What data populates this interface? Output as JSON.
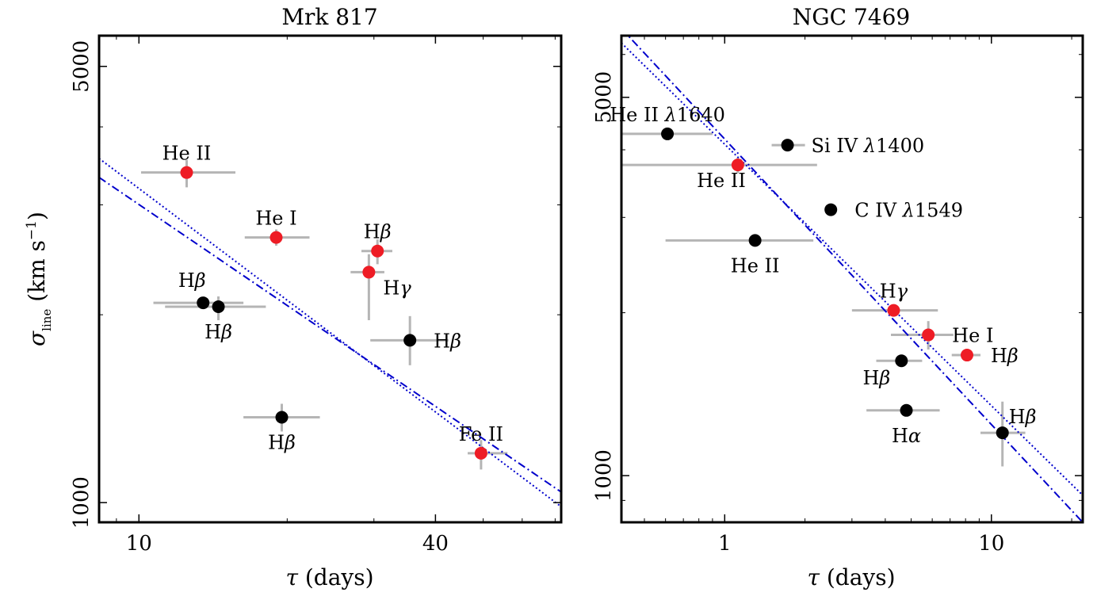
{
  "chart_data": [
    {
      "type": "scatter",
      "title": "Mrk 817",
      "xlabel": "τ (days)",
      "ylabel": "σ_line (km s^-1)",
      "xscale": "log",
      "yscale": "log",
      "xlim": [
        8.3,
        72
      ],
      "ylim": [
        930,
        5600
      ],
      "xticks": [
        10,
        40
      ],
      "yticks": [
        1000,
        5000
      ],
      "ytick_labels": [
        "1000",
        "5000"
      ],
      "grid": false,
      "points": [
        {
          "label": "He II",
          "x": 12.5,
          "y": 3380,
          "xerr": [
            2.4,
            3.2
          ],
          "yerr": [
            180,
            160
          ],
          "color": "red",
          "label_pos": "above"
        },
        {
          "label": "He I",
          "x": 19.0,
          "y": 2660,
          "xerr": [
            2.6,
            3.2
          ],
          "yerr": [
            80,
            80
          ],
          "color": "red",
          "label_pos": "above"
        },
        {
          "label": "Hβ",
          "x": 30.5,
          "y": 2530,
          "xerr": [
            2.2,
            2.2
          ],
          "yerr": [
            120,
            110
          ],
          "color": "red",
          "label_pos": "above"
        },
        {
          "label": "Hγ",
          "x": 29.3,
          "y": 2340,
          "xerr": [
            2.4,
            2.2
          ],
          "yerr": [
            380,
            160
          ],
          "color": "red",
          "label_pos": "below-right"
        },
        {
          "label": "Hβ",
          "x": 13.5,
          "y": 2090,
          "xerr": [
            2.8,
            2.8
          ],
          "yerr": [
            40,
            40
          ],
          "color": "black",
          "label_pos": "above-left"
        },
        {
          "label": "Hβ",
          "x": 14.5,
          "y": 2060,
          "xerr": [
            3.2,
            3.6
          ],
          "yerr": [
            100,
            80
          ],
          "color": "black",
          "label_pos": "below"
        },
        {
          "label": "Hβ",
          "x": 35.5,
          "y": 1820,
          "xerr": [
            6.0,
            7.0
          ],
          "yerr": [
            160,
            170
          ],
          "color": "black",
          "label_pos": "right"
        },
        {
          "label": "Hβ",
          "x": 19.5,
          "y": 1370,
          "xerr": [
            3.2,
            3.8
          ],
          "yerr": [
            70,
            70
          ],
          "color": "black",
          "label_pos": "below"
        },
        {
          "label": "Fe II",
          "x": 49.5,
          "y": 1200,
          "xerr": [
            3.0,
            6.5
          ],
          "yerr": [
            70,
            60
          ],
          "color": "red",
          "label_pos": "above"
        }
      ],
      "fits": [
        {
          "style": "dash-dot",
          "color": "#0000cc",
          "x1": 8.3,
          "y1": 3320,
          "x2": 72,
          "y2": 1040
        },
        {
          "style": "dotted",
          "color": "#0000cc",
          "x1": 8.3,
          "y1": 3560,
          "x2": 72,
          "y2": 985
        }
      ]
    },
    {
      "type": "scatter",
      "title": "NGC 7469",
      "xlabel": "τ (days)",
      "ylabel": "",
      "xscale": "log",
      "yscale": "log",
      "xlim": [
        0.41,
        22
      ],
      "ylim": [
        820,
        6500
      ],
      "xticks": [
        1,
        10
      ],
      "yticks": [
        1000,
        5000
      ],
      "ytick_labels": [
        "1000",
        "5000"
      ],
      "grid": false,
      "points": [
        {
          "label": "He II λ1640",
          "x": 0.61,
          "y": 4280,
          "xerr": [
            0.2,
            0.29
          ],
          "yerr": [
            0,
            0
          ],
          "color": "black",
          "label_pos": "above"
        },
        {
          "label": "Si IV λ1400",
          "x": 1.72,
          "y": 4080,
          "xerr": [
            0.22,
            0.28
          ],
          "yerr": [
            60,
            60
          ],
          "color": "black",
          "label_pos": "right"
        },
        {
          "label": "He II",
          "x": 1.12,
          "y": 3750,
          "xerr": [
            0.71,
            1.1
          ],
          "yerr": [
            130,
            120
          ],
          "color": "red",
          "label_pos": "below-left"
        },
        {
          "label": "C IV λ1549",
          "x": 2.5,
          "y": 3100,
          "xerr": [
            0.1,
            0.12
          ],
          "yerr": [
            0,
            0
          ],
          "color": "black",
          "label_pos": "right"
        },
        {
          "label": "He II",
          "x": 1.3,
          "y": 2720,
          "xerr": [
            0.7,
            0.85
          ],
          "yerr": [
            0,
            0
          ],
          "color": "black",
          "label_pos": "below"
        },
        {
          "label": "Hγ",
          "x": 4.3,
          "y": 2020,
          "xerr": [
            1.3,
            2.0
          ],
          "yerr": [
            0,
            0
          ],
          "color": "red",
          "label_pos": "above"
        },
        {
          "label": "He I",
          "x": 5.8,
          "y": 1820,
          "xerr": [
            1.6,
            1.4
          ],
          "yerr": [
            110,
            110
          ],
          "color": "red",
          "label_pos": "right"
        },
        {
          "label": "Hβ",
          "x": 4.6,
          "y": 1630,
          "xerr": [
            0.9,
            0.9
          ],
          "yerr": [
            0,
            0
          ],
          "color": "black",
          "label_pos": "below-left"
        },
        {
          "label": "Hβ",
          "x": 8.1,
          "y": 1670,
          "xerr": [
            1.0,
            1.0
          ],
          "yerr": [
            0,
            0
          ],
          "color": "red",
          "label_pos": "right"
        },
        {
          "label": "Hα",
          "x": 4.8,
          "y": 1320,
          "xerr": [
            1.4,
            1.6
          ],
          "yerr": [
            0,
            0
          ],
          "color": "black",
          "label_pos": "below"
        },
        {
          "label": "Hβ",
          "x": 11.0,
          "y": 1200,
          "xerr": [
            1.9,
            2.4
          ],
          "yerr": [
            160,
            170
          ],
          "color": "black",
          "label_pos": "above-right"
        }
      ],
      "fits": [
        {
          "style": "dash-dot",
          "color": "#0000cc",
          "x1": 0.41,
          "y1": 6700,
          "x2": 22,
          "y2": 820
        },
        {
          "style": "dotted",
          "color": "#0000cc",
          "x1": 0.41,
          "y1": 6300,
          "x2": 22,
          "y2": 920
        }
      ]
    }
  ]
}
